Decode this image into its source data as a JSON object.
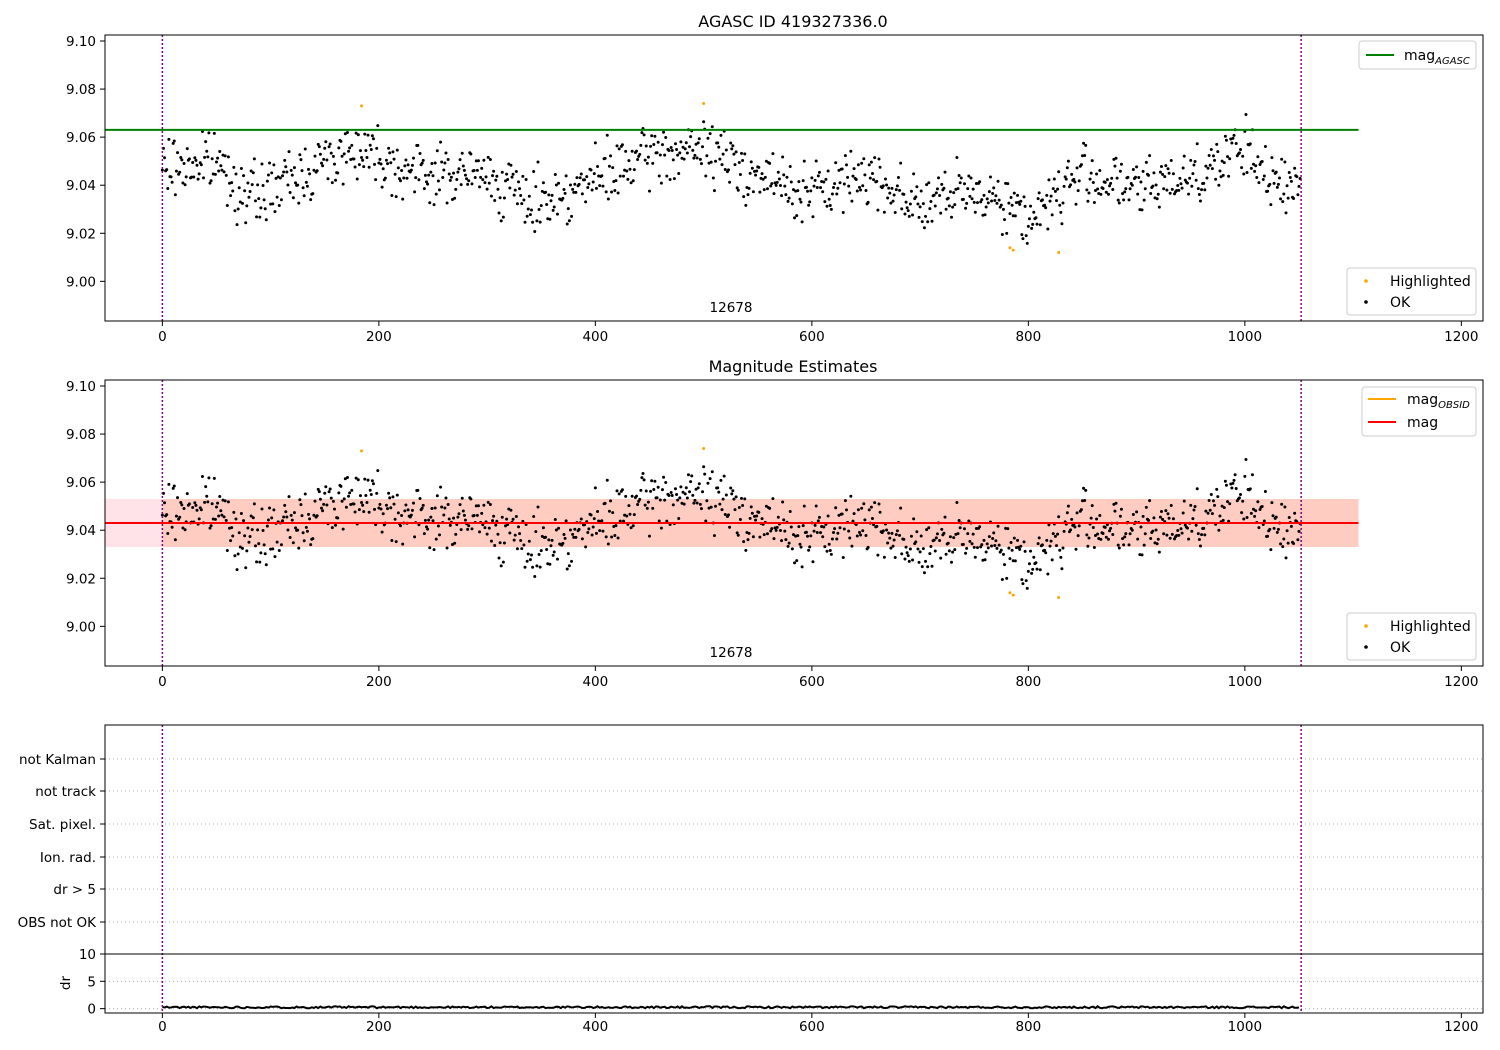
{
  "colors": {
    "ok": "#000000",
    "highlighted": "#ffa500",
    "agasc_line": "#008000",
    "obsid_line": "#ffa500",
    "mean_line": "#ff0000",
    "band_fill": "#ffc0cb",
    "band_overlap": "#ffa07a",
    "vline": "#800080",
    "grid": "#b0b0b0"
  },
  "chart_data": [
    {
      "type": "scatter",
      "title": "AGASC ID 419327336.0",
      "xlim": [
        -53,
        1220
      ],
      "ylim": [
        8.9835,
        9.1025
      ],
      "xticks": [
        0,
        200,
        400,
        600,
        800,
        1000,
        1200
      ],
      "yticks": [
        "9.00",
        "9.02",
        "9.04",
        "9.06",
        "9.08",
        "9.10"
      ],
      "obsid_label": "12678",
      "obsid_label_x": 526,
      "obs_boundaries": [
        0,
        1052
      ],
      "reference_line": {
        "name": "mag_AGASC",
        "y": 9.063,
        "x": [
          -53,
          1105
        ]
      },
      "legend_lines": [
        {
          "base": "mag",
          "sub": "AGASC"
        }
      ],
      "legend_markers": [
        "Highlighted",
        "OK"
      ],
      "highlighted_points": [
        [
          184,
          9.073
        ],
        [
          500,
          9.074
        ],
        [
          783,
          9.014
        ],
        [
          786,
          9.013
        ],
        [
          828,
          9.012
        ]
      ],
      "ok_series": {
        "n": 1052,
        "base": 9.041
      }
    },
    {
      "type": "scatter",
      "title": "Magnitude Estimates",
      "xlim": [
        -53,
        1220
      ],
      "ylim": [
        8.9835,
        9.1025
      ],
      "xticks": [
        0,
        200,
        400,
        600,
        800,
        1000,
        1200
      ],
      "yticks": [
        "9.00",
        "9.02",
        "9.04",
        "9.06",
        "9.08",
        "9.10"
      ],
      "obsid_label": "12678",
      "obsid_label_x": 526,
      "obs_boundaries": [
        0,
        1052
      ],
      "mean_line": {
        "name": "mag",
        "y": 9.043,
        "x": [
          -53,
          1105
        ]
      },
      "obsid_band": {
        "low": 9.033,
        "high": 9.053,
        "x": [
          0,
          1105
        ]
      },
      "total_band": {
        "low": 9.033,
        "high": 9.053,
        "x": [
          -53,
          1105
        ]
      },
      "legend_lines": [
        {
          "base": "mag",
          "sub": "OBSID"
        },
        {
          "base": "mag",
          "sub": ""
        }
      ],
      "legend_markers": [
        "Highlighted",
        "OK"
      ],
      "highlighted_points": [
        [
          184,
          9.073
        ],
        [
          500,
          9.074
        ],
        [
          783,
          9.014
        ],
        [
          786,
          9.013
        ],
        [
          828,
          9.012
        ]
      ]
    },
    {
      "type": "line",
      "title": "",
      "xlim": [
        -53,
        1220
      ],
      "category_rows": [
        "not Kalman",
        "not track",
        "Sat. pixel.",
        "Ion. rad.",
        "dr > 5",
        "OBS not OK"
      ],
      "dr_panel": {
        "ylabel": "dr",
        "ylim": [
          -0.8,
          10
        ],
        "yticks": [
          0,
          5,
          10
        ],
        "level": 0.25
      },
      "xticks": [
        0,
        200,
        400,
        600,
        800,
        1000,
        1200
      ],
      "obs_boundaries": [
        0,
        1052
      ]
    }
  ]
}
